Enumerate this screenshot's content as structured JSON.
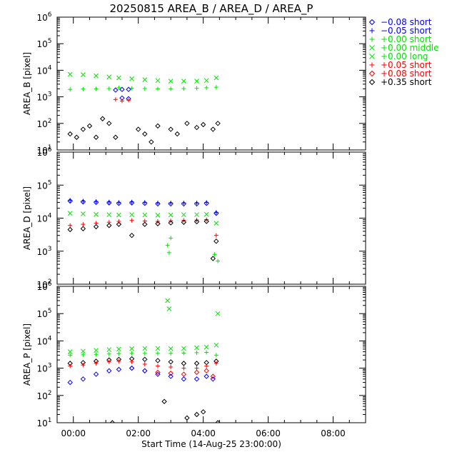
{
  "title": "20250815 AREA_B  /  AREA_D  /  AREA_P",
  "colors": {
    "black": "#000000",
    "blue": "#0000ff",
    "green": "#00e600",
    "red": "#ff0000"
  },
  "legend": [
    {
      "symbol": "diamond",
      "color": "blue",
      "label": "−0.08 short"
    },
    {
      "symbol": "plus",
      "color": "blue",
      "label": "−0.05 short"
    },
    {
      "symbol": "plus",
      "color": "green",
      "label": "+0.00 short"
    },
    {
      "symbol": "cross",
      "color": "green",
      "label": "+0.00 middle"
    },
    {
      "symbol": "cross",
      "color": "green",
      "label": "+0.00 long"
    },
    {
      "symbol": "plus",
      "color": "red",
      "label": "+0.05 short"
    },
    {
      "symbol": "diamond",
      "color": "red",
      "label": "+0.08 short"
    },
    {
      "symbol": "diamond",
      "color": "black",
      "label": "+0.35 short"
    }
  ],
  "xaxis": {
    "label": "Start Time (14-Aug-25 23:00:00)",
    "range_hours": [
      -0.5,
      9.0
    ],
    "ticks": [
      {
        "value": 0.0,
        "label": "00:00"
      },
      {
        "value": 2.0,
        "label": "02:00"
      },
      {
        "value": 4.0,
        "label": "04:00"
      },
      {
        "value": 6.0,
        "label": "06:00"
      },
      {
        "value": 8.0,
        "label": "08:00"
      }
    ],
    "minor_step_hours": 0.5
  },
  "chart_data": [
    {
      "type": "scatter",
      "ylabel": "AREA_B [pixel]",
      "yscale": "log",
      "ylim": [
        10,
        1000000
      ],
      "ytick_exponents": [
        1,
        2,
        3,
        4,
        5,
        6
      ],
      "series": [
        {
          "legend_index": 3,
          "points": [
            [
              -0.1,
              7000
            ],
            [
              0.3,
              6800
            ],
            [
              0.7,
              6200
            ],
            [
              1.1,
              5600
            ],
            [
              1.4,
              5200
            ],
            [
              1.8,
              4800
            ],
            [
              2.2,
              4400
            ],
            [
              2.6,
              4100
            ],
            [
              3.0,
              3900
            ],
            [
              3.4,
              3900
            ],
            [
              3.8,
              3900
            ],
            [
              4.1,
              4100
            ],
            [
              4.4,
              5200
            ]
          ]
        },
        {
          "legend_index": 2,
          "points": [
            [
              -0.1,
              1900
            ],
            [
              0.3,
              1950
            ],
            [
              0.7,
              2000
            ],
            [
              1.1,
              2050
            ],
            [
              1.4,
              2200
            ],
            [
              1.8,
              2100
            ],
            [
              2.2,
              2050
            ],
            [
              2.6,
              2000
            ],
            [
              3.0,
              2000
            ],
            [
              3.4,
              2050
            ],
            [
              3.8,
              2100
            ],
            [
              4.1,
              2200
            ],
            [
              4.4,
              2300
            ]
          ]
        },
        {
          "legend_index": 0,
          "points": [
            [
              1.3,
              1800
            ],
            [
              1.5,
              1900
            ],
            [
              1.7,
              1900
            ],
            [
              1.5,
              900
            ],
            [
              1.7,
              850
            ]
          ]
        },
        {
          "legend_index": 5,
          "points": [
            [
              1.3,
              800
            ],
            [
              1.5,
              700
            ],
            [
              1.7,
              750
            ]
          ]
        },
        {
          "legend_index": 7,
          "points": [
            [
              -0.1,
              40
            ],
            [
              0.1,
              30
            ],
            [
              0.3,
              60
            ],
            [
              0.5,
              80
            ],
            [
              0.7,
              30
            ],
            [
              0.9,
              150
            ],
            [
              1.1,
              100
            ],
            [
              1.3,
              30
            ],
            [
              2.0,
              60
            ],
            [
              2.2,
              40
            ],
            [
              2.4,
              20
            ],
            [
              2.6,
              80
            ],
            [
              3.0,
              60
            ],
            [
              3.2,
              40
            ],
            [
              3.5,
              100
            ],
            [
              3.8,
              70
            ],
            [
              4.0,
              90
            ],
            [
              4.3,
              60
            ],
            [
              4.45,
              100
            ]
          ]
        }
      ]
    },
    {
      "type": "scatter",
      "ylabel": "AREA_D [pixel]",
      "yscale": "log",
      "ylim": [
        100,
        1000000
      ],
      "ytick_exponents": [
        2,
        3,
        4,
        5,
        6
      ],
      "series": [
        {
          "legend_index": 1,
          "points": [
            [
              -0.1,
              35000
            ],
            [
              0.3,
              33000
            ],
            [
              0.7,
              32000
            ],
            [
              1.1,
              31000
            ],
            [
              1.4,
              30000
            ],
            [
              1.8,
              31000
            ],
            [
              2.2,
              30000
            ],
            [
              2.6,
              29000
            ],
            [
              3.0,
              29000
            ],
            [
              3.4,
              29000
            ],
            [
              3.8,
              29000
            ],
            [
              4.1,
              30000
            ],
            [
              4.4,
              15000
            ]
          ]
        },
        {
          "legend_index": 0,
          "points": [
            [
              -0.1,
              33000
            ],
            [
              0.3,
              31000
            ],
            [
              0.7,
              30000
            ],
            [
              1.1,
              29000
            ],
            [
              1.4,
              28000
            ],
            [
              1.8,
              29000
            ],
            [
              2.2,
              28000
            ],
            [
              2.6,
              27000
            ],
            [
              3.0,
              27000
            ],
            [
              3.4,
              27000
            ],
            [
              3.8,
              27000
            ],
            [
              4.1,
              28000
            ],
            [
              4.4,
              14000
            ]
          ]
        },
        {
          "legend_index": 3,
          "points": [
            [
              -0.1,
              14000
            ],
            [
              0.3,
              13500
            ],
            [
              0.7,
              13000
            ],
            [
              1.1,
              12800
            ],
            [
              1.4,
              12500
            ],
            [
              1.8,
              12800
            ],
            [
              2.2,
              12500
            ],
            [
              2.6,
              12300
            ],
            [
              3.0,
              12500
            ],
            [
              3.4,
              12700
            ],
            [
              3.8,
              12800
            ],
            [
              4.1,
              13000
            ],
            [
              4.4,
              7000
            ]
          ]
        },
        {
          "legend_index": 5,
          "points": [
            [
              -0.1,
              6000
            ],
            [
              0.3,
              6500
            ],
            [
              0.7,
              7000
            ],
            [
              1.1,
              7500
            ],
            [
              1.4,
              8000
            ],
            [
              1.8,
              8500
            ],
            [
              2.2,
              8200
            ],
            [
              2.6,
              8000
            ],
            [
              3.0,
              8300
            ],
            [
              3.4,
              8600
            ],
            [
              3.8,
              8800
            ],
            [
              4.1,
              9000
            ],
            [
              4.4,
              3000
            ]
          ]
        },
        {
          "legend_index": 7,
          "points": [
            [
              -0.1,
              4500
            ],
            [
              0.3,
              4800
            ],
            [
              0.7,
              5500
            ],
            [
              1.1,
              6000
            ],
            [
              1.4,
              6500
            ],
            [
              1.8,
              3000
            ],
            [
              2.2,
              6500
            ],
            [
              2.6,
              6800
            ],
            [
              3.0,
              7200
            ],
            [
              3.4,
              7500
            ],
            [
              3.8,
              7800
            ],
            [
              4.1,
              8000
            ],
            [
              4.4,
              2000
            ],
            [
              4.3,
              600
            ]
          ]
        },
        {
          "legend_index": 2,
          "points": [
            [
              2.9,
              1500
            ],
            [
              2.95,
              900
            ],
            [
              3.0,
              2500
            ],
            [
              4.35,
              800
            ],
            [
              4.45,
              500
            ]
          ]
        }
      ]
    },
    {
      "type": "scatter",
      "ylabel": "AREA_P [pixel]",
      "yscale": "log",
      "ylim": [
        10,
        1000000
      ],
      "ytick_exponents": [
        1,
        2,
        3,
        4,
        5,
        6
      ],
      "series": [
        {
          "legend_index": 3,
          "points": [
            [
              -0.1,
              4000
            ],
            [
              0.3,
              4200
            ],
            [
              0.7,
              4500
            ],
            [
              1.1,
              4800
            ],
            [
              1.4,
              5000
            ],
            [
              1.8,
              5200
            ],
            [
              2.2,
              5300
            ],
            [
              2.6,
              5300
            ],
            [
              3.0,
              5200
            ],
            [
              3.4,
              5300
            ],
            [
              3.8,
              5600
            ],
            [
              4.1,
              5900
            ],
            [
              4.4,
              7000
            ],
            [
              2.9,
              300000
            ],
            [
              2.95,
              150000
            ],
            [
              4.45,
              100000
            ]
          ]
        },
        {
          "legend_index": 2,
          "points": [
            [
              -0.1,
              3000
            ],
            [
              0.3,
              3100
            ],
            [
              0.7,
              3200
            ],
            [
              1.1,
              3300
            ],
            [
              1.4,
              3400
            ],
            [
              1.8,
              3500
            ],
            [
              2.2,
              3500
            ],
            [
              2.6,
              3500
            ],
            [
              3.0,
              3500
            ],
            [
              3.4,
              3600
            ],
            [
              3.8,
              3700
            ],
            [
              4.1,
              3800
            ],
            [
              4.4,
              3000
            ]
          ]
        },
        {
          "legend_index": 7,
          "points": [
            [
              -0.1,
              1500
            ],
            [
              0.3,
              1600
            ],
            [
              0.7,
              1800
            ],
            [
              1.1,
              2000
            ],
            [
              1.4,
              2100
            ],
            [
              1.8,
              2200
            ],
            [
              2.2,
              2100
            ],
            [
              2.6,
              1900
            ],
            [
              3.0,
              1700
            ],
            [
              3.4,
              1500
            ],
            [
              3.8,
              1500
            ],
            [
              4.1,
              1600
            ],
            [
              4.4,
              1800
            ],
            [
              1.2,
              10
            ],
            [
              2.8,
              60
            ],
            [
              3.5,
              15
            ],
            [
              3.8,
              20
            ],
            [
              4.0,
              25
            ],
            [
              4.45,
              10
            ]
          ]
        },
        {
          "legend_index": 5,
          "points": [
            [
              -0.1,
              1200
            ],
            [
              0.3,
              1300
            ],
            [
              0.7,
              1500
            ],
            [
              1.1,
              1700
            ],
            [
              1.4,
              1800
            ],
            [
              1.8,
              1700
            ],
            [
              2.2,
              1400
            ],
            [
              2.6,
              1200
            ],
            [
              3.0,
              1100
            ],
            [
              3.4,
              1000
            ],
            [
              3.8,
              1000
            ],
            [
              4.1,
              1200
            ],
            [
              4.4,
              1500
            ]
          ]
        },
        {
          "legend_index": 6,
          "points": [
            [
              1.8,
              1000
            ],
            [
              2.2,
              800
            ],
            [
              2.6,
              700
            ],
            [
              3.0,
              650
            ],
            [
              3.4,
              600
            ],
            [
              3.8,
              700
            ],
            [
              4.1,
              800
            ],
            [
              4.3,
              500
            ]
          ]
        },
        {
          "legend_index": 0,
          "points": [
            [
              -0.1,
              300
            ],
            [
              0.3,
              400
            ],
            [
              0.7,
              600
            ],
            [
              1.1,
              800
            ],
            [
              1.4,
              900
            ],
            [
              1.8,
              1000
            ],
            [
              2.2,
              800
            ],
            [
              2.6,
              600
            ],
            [
              3.0,
              500
            ],
            [
              3.4,
              400
            ],
            [
              3.8,
              400
            ],
            [
              4.1,
              500
            ],
            [
              4.3,
              400
            ]
          ]
        }
      ]
    }
  ]
}
